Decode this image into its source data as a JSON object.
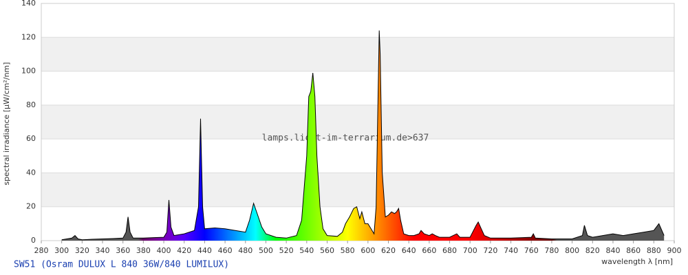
{
  "chart_data": {
    "type": "area",
    "title": "SW51 (Osram DULUX L 840 36W/840 LUMILUX)",
    "watermark": "lamps.licht-im-terrarium.de>637",
    "xlabel": "wavelength λ [nm]",
    "ylabel": "spectral irradiance [µW/cm²/nm]",
    "color": "#000000",
    "grid": true,
    "xlim": [
      280,
      900
    ],
    "ylim": [
      0,
      140
    ],
    "xticks": [
      280,
      300,
      320,
      340,
      360,
      380,
      400,
      420,
      440,
      460,
      480,
      500,
      520,
      540,
      560,
      580,
      600,
      620,
      640,
      660,
      680,
      700,
      720,
      740,
      760,
      780,
      800,
      820,
      840,
      860,
      880,
      900
    ],
    "yticks": [
      0,
      20,
      40,
      60,
      80,
      100,
      120,
      140
    ],
    "x": [
      300,
      305,
      310,
      313,
      316,
      320,
      330,
      340,
      350,
      360,
      363,
      365,
      367,
      370,
      380,
      390,
      400,
      403,
      405,
      407,
      410,
      420,
      430,
      434,
      436,
      438,
      440,
      450,
      460,
      470,
      480,
      484,
      488,
      492,
      496,
      500,
      510,
      520,
      530,
      535,
      540,
      542,
      544,
      546,
      548,
      550,
      553,
      556,
      560,
      570,
      575,
      578,
      582,
      586,
      589,
      592,
      594,
      597,
      600,
      603,
      606,
      608,
      610,
      611,
      612,
      614,
      617,
      620,
      623,
      626,
      628,
      630,
      632,
      635,
      640,
      645,
      650,
      652,
      655,
      660,
      663,
      666,
      670,
      680,
      687,
      690,
      700,
      706,
      708,
      711,
      714,
      720,
      740,
      760,
      762,
      764,
      780,
      800,
      810,
      812,
      815,
      820,
      830,
      840,
      850,
      860,
      870,
      880,
      885,
      890
    ],
    "values": [
      0.5,
      1,
      1.5,
      3,
      1,
      0.5,
      0.8,
      1,
      1.2,
      1.5,
      5,
      14,
      5,
      1.5,
      1.5,
      1.8,
      2,
      5,
      24,
      8,
      3,
      4,
      6,
      20,
      72,
      20,
      7,
      7.5,
      7,
      6,
      5,
      12,
      22,
      15,
      8,
      4,
      2,
      1.5,
      3,
      12,
      50,
      85,
      88,
      99,
      85,
      50,
      20,
      7,
      3,
      2.5,
      5,
      10,
      14,
      19,
      20,
      13,
      17,
      10,
      10,
      7,
      4,
      20,
      90,
      124,
      110,
      40,
      14,
      15,
      17,
      16,
      17,
      19,
      12,
      4,
      3,
      3,
      4,
      6,
      4,
      3,
      4,
      3,
      2,
      2,
      4,
      2,
      2,
      9,
      11,
      7,
      3,
      1.5,
      1.5,
      2,
      4,
      1.5,
      1,
      1,
      3,
      9,
      3,
      2,
      3,
      4,
      3,
      4,
      5,
      6,
      10,
      3
    ]
  }
}
